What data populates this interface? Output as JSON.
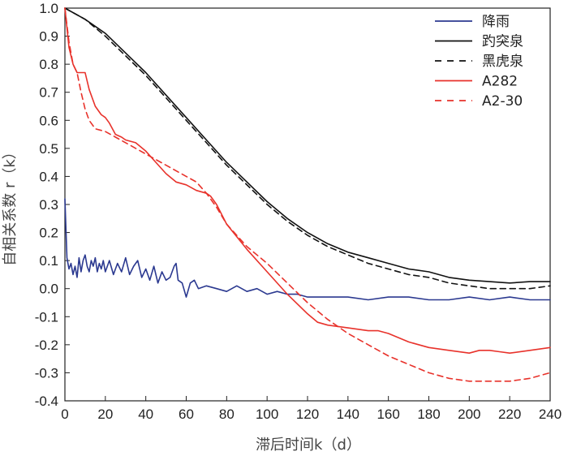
{
  "chart_data": {
    "type": "line",
    "xlabel": "滞后时间k（d）",
    "ylabel": "自相关系数 r（k）",
    "xlim": [
      0,
      240
    ],
    "ylim": [
      -0.4,
      1.0
    ],
    "x_ticks": [
      "0",
      "20",
      "40",
      "60",
      "80",
      "100",
      "120",
      "140",
      "160",
      "180",
      "200",
      "220",
      "240"
    ],
    "y_ticks": [
      "1.0",
      "0.9",
      "0.8",
      "0.7",
      "0.6",
      "0.5",
      "0.4",
      "0.3",
      "0.2",
      "0.1",
      "0.0",
      "-0.1",
      "-0.2",
      "-0.3",
      "-0.4"
    ],
    "grid": false,
    "legend_position": "top-right",
    "series": [
      {
        "name": "降雨",
        "color": "#2b3990",
        "dash": "solid",
        "x": [
          0,
          1,
          2,
          3,
          4,
          5,
          6,
          7,
          8,
          9,
          10,
          11,
          12,
          13,
          14,
          15,
          16,
          17,
          18,
          19,
          20,
          22,
          24,
          26,
          28,
          30,
          32,
          34,
          36,
          38,
          40,
          42,
          44,
          46,
          48,
          50,
          52,
          54,
          55,
          56,
          58,
          60,
          62,
          64,
          66,
          70,
          75,
          80,
          85,
          90,
          95,
          100,
          105,
          110,
          115,
          120,
          130,
          140,
          150,
          160,
          170,
          180,
          190,
          200,
          210,
          220,
          230,
          240
        ],
        "y": [
          0.32,
          0.11,
          0.07,
          0.09,
          0.05,
          0.08,
          0.04,
          0.11,
          0.06,
          0.1,
          0.12,
          0.08,
          0.06,
          0.1,
          0.08,
          0.11,
          0.06,
          0.09,
          0.07,
          0.1,
          0.06,
          0.1,
          0.05,
          0.09,
          0.06,
          0.11,
          0.05,
          0.08,
          0.1,
          0.04,
          0.07,
          0.03,
          0.08,
          0.02,
          0.06,
          0.03,
          0.04,
          0.08,
          0.09,
          0.03,
          0.02,
          -0.03,
          0.02,
          0.03,
          0.0,
          0.01,
          0.0,
          -0.01,
          0.01,
          -0.01,
          0.0,
          -0.02,
          -0.01,
          -0.02,
          -0.02,
          -0.03,
          -0.03,
          -0.03,
          -0.04,
          -0.03,
          -0.03,
          -0.04,
          -0.04,
          -0.03,
          -0.04,
          -0.03,
          -0.04,
          -0.04
        ]
      },
      {
        "name": "趵突泉",
        "color": "#111111",
        "dash": "solid",
        "x": [
          0,
          10,
          20,
          30,
          40,
          50,
          60,
          70,
          80,
          90,
          100,
          110,
          120,
          130,
          140,
          150,
          160,
          170,
          180,
          190,
          200,
          210,
          220,
          230,
          240
        ],
        "y": [
          1.0,
          0.96,
          0.91,
          0.84,
          0.77,
          0.69,
          0.61,
          0.53,
          0.45,
          0.38,
          0.31,
          0.25,
          0.2,
          0.16,
          0.13,
          0.11,
          0.09,
          0.07,
          0.06,
          0.04,
          0.03,
          0.025,
          0.02,
          0.025,
          0.025
        ]
      },
      {
        "name": "黑虎泉",
        "color": "#111111",
        "dash": "dashed",
        "x": [
          0,
          10,
          20,
          30,
          40,
          50,
          60,
          70,
          80,
          90,
          100,
          110,
          120,
          130,
          140,
          150,
          160,
          170,
          180,
          190,
          200,
          210,
          220,
          230,
          240
        ],
        "y": [
          1.0,
          0.96,
          0.9,
          0.83,
          0.76,
          0.68,
          0.6,
          0.52,
          0.44,
          0.37,
          0.3,
          0.24,
          0.19,
          0.15,
          0.12,
          0.09,
          0.07,
          0.05,
          0.04,
          0.02,
          0.01,
          0.0,
          0.0,
          0.0,
          0.01
        ]
      },
      {
        "name": "A282",
        "color": "#e8322b",
        "dash": "solid",
        "x": [
          0,
          2,
          4,
          6,
          8,
          10,
          12,
          15,
          18,
          20,
          22,
          25,
          28,
          30,
          35,
          40,
          45,
          50,
          55,
          60,
          65,
          70,
          72,
          75,
          80,
          90,
          100,
          110,
          120,
          125,
          130,
          140,
          150,
          155,
          160,
          170,
          180,
          190,
          200,
          205,
          210,
          215,
          220,
          230,
          240
        ],
        "y": [
          1.0,
          0.86,
          0.8,
          0.77,
          0.77,
          0.77,
          0.71,
          0.65,
          0.62,
          0.61,
          0.59,
          0.55,
          0.54,
          0.53,
          0.52,
          0.49,
          0.45,
          0.41,
          0.38,
          0.37,
          0.35,
          0.34,
          0.33,
          0.3,
          0.23,
          0.14,
          0.06,
          -0.02,
          -0.09,
          -0.12,
          -0.13,
          -0.14,
          -0.15,
          -0.15,
          -0.16,
          -0.19,
          -0.21,
          -0.22,
          -0.23,
          -0.22,
          -0.22,
          -0.225,
          -0.23,
          -0.22,
          -0.21
        ]
      },
      {
        "name": "A2-30",
        "color": "#e8322b",
        "dash": "dashed",
        "x": [
          0,
          2,
          4,
          6,
          8,
          10,
          12,
          15,
          20,
          25,
          30,
          40,
          50,
          60,
          65,
          70,
          75,
          80,
          90,
          100,
          110,
          120,
          130,
          140,
          150,
          160,
          170,
          180,
          190,
          200,
          210,
          220,
          230,
          240
        ],
        "y": [
          1.0,
          0.88,
          0.8,
          0.77,
          0.7,
          0.64,
          0.6,
          0.57,
          0.56,
          0.54,
          0.52,
          0.48,
          0.44,
          0.4,
          0.38,
          0.34,
          0.29,
          0.23,
          0.15,
          0.09,
          0.02,
          -0.05,
          -0.11,
          -0.16,
          -0.2,
          -0.24,
          -0.27,
          -0.3,
          -0.32,
          -0.33,
          -0.33,
          -0.33,
          -0.32,
          -0.3
        ]
      }
    ]
  }
}
